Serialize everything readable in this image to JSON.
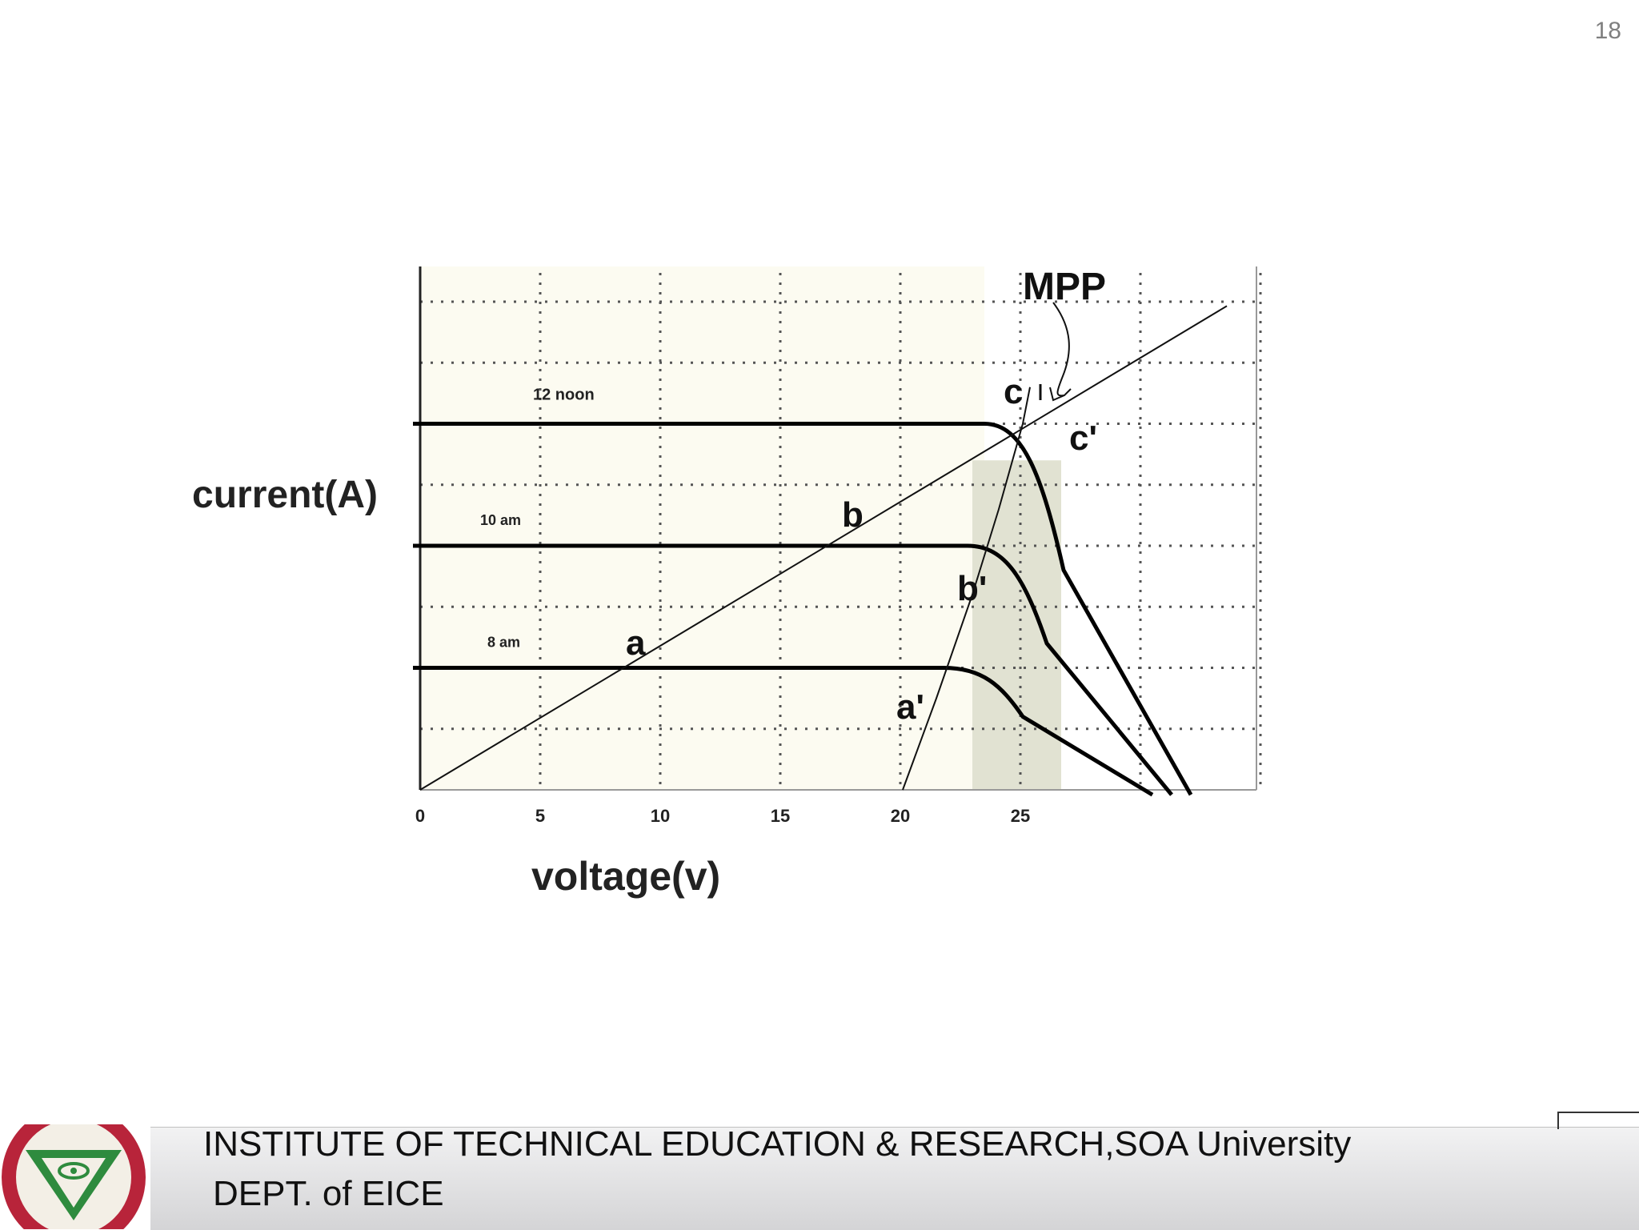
{
  "slide": {
    "number": "18"
  },
  "footer": {
    "institute": "INSTITUTE OF TECHNICAL EDUCATION & RESEARCH,SOA University",
    "department": "DEPT. of EICE"
  },
  "chart_data": {
    "type": "line",
    "title": "",
    "xlabel": "voltage(v)",
    "ylabel": "current(A)",
    "x_ticks": [
      0,
      5,
      10,
      15,
      20,
      25
    ],
    "xlim": [
      0,
      35
    ],
    "ylim": [
      0,
      9
    ],
    "grid": true,
    "series": [
      {
        "name": "12 noon",
        "isc": 6,
        "knee": 23.5,
        "voc": 32.1
      },
      {
        "name": "10 am",
        "isc": 4,
        "knee": 22.8,
        "voc": 31.3
      },
      {
        "name": "8 am",
        "isc": 2,
        "knee": 21.8,
        "voc": 30.5
      }
    ],
    "load_line": {
      "slope": 0.236,
      "x_end": 33.6
    },
    "mpp_curve": {
      "points": [
        [
          20.1,
          0
        ],
        [
          21.5,
          1.5
        ],
        [
          23.0,
          3.2
        ],
        [
          24.1,
          4.6
        ],
        [
          25.1,
          6.0
        ],
        [
          25.4,
          6.6
        ]
      ]
    },
    "labels": {
      "a": "a",
      "b": "b",
      "c": "c",
      "a_prime": "a'",
      "b_prime": "b'",
      "c_prime": "c'",
      "mpp": "MPP"
    },
    "shaded_band": {
      "x": [
        23,
        26.7
      ]
    },
    "colors": {
      "curve": "#000000",
      "plot_bg": "#fcfbf1",
      "band": "#e1e2d2",
      "grid": "#555555"
    }
  }
}
